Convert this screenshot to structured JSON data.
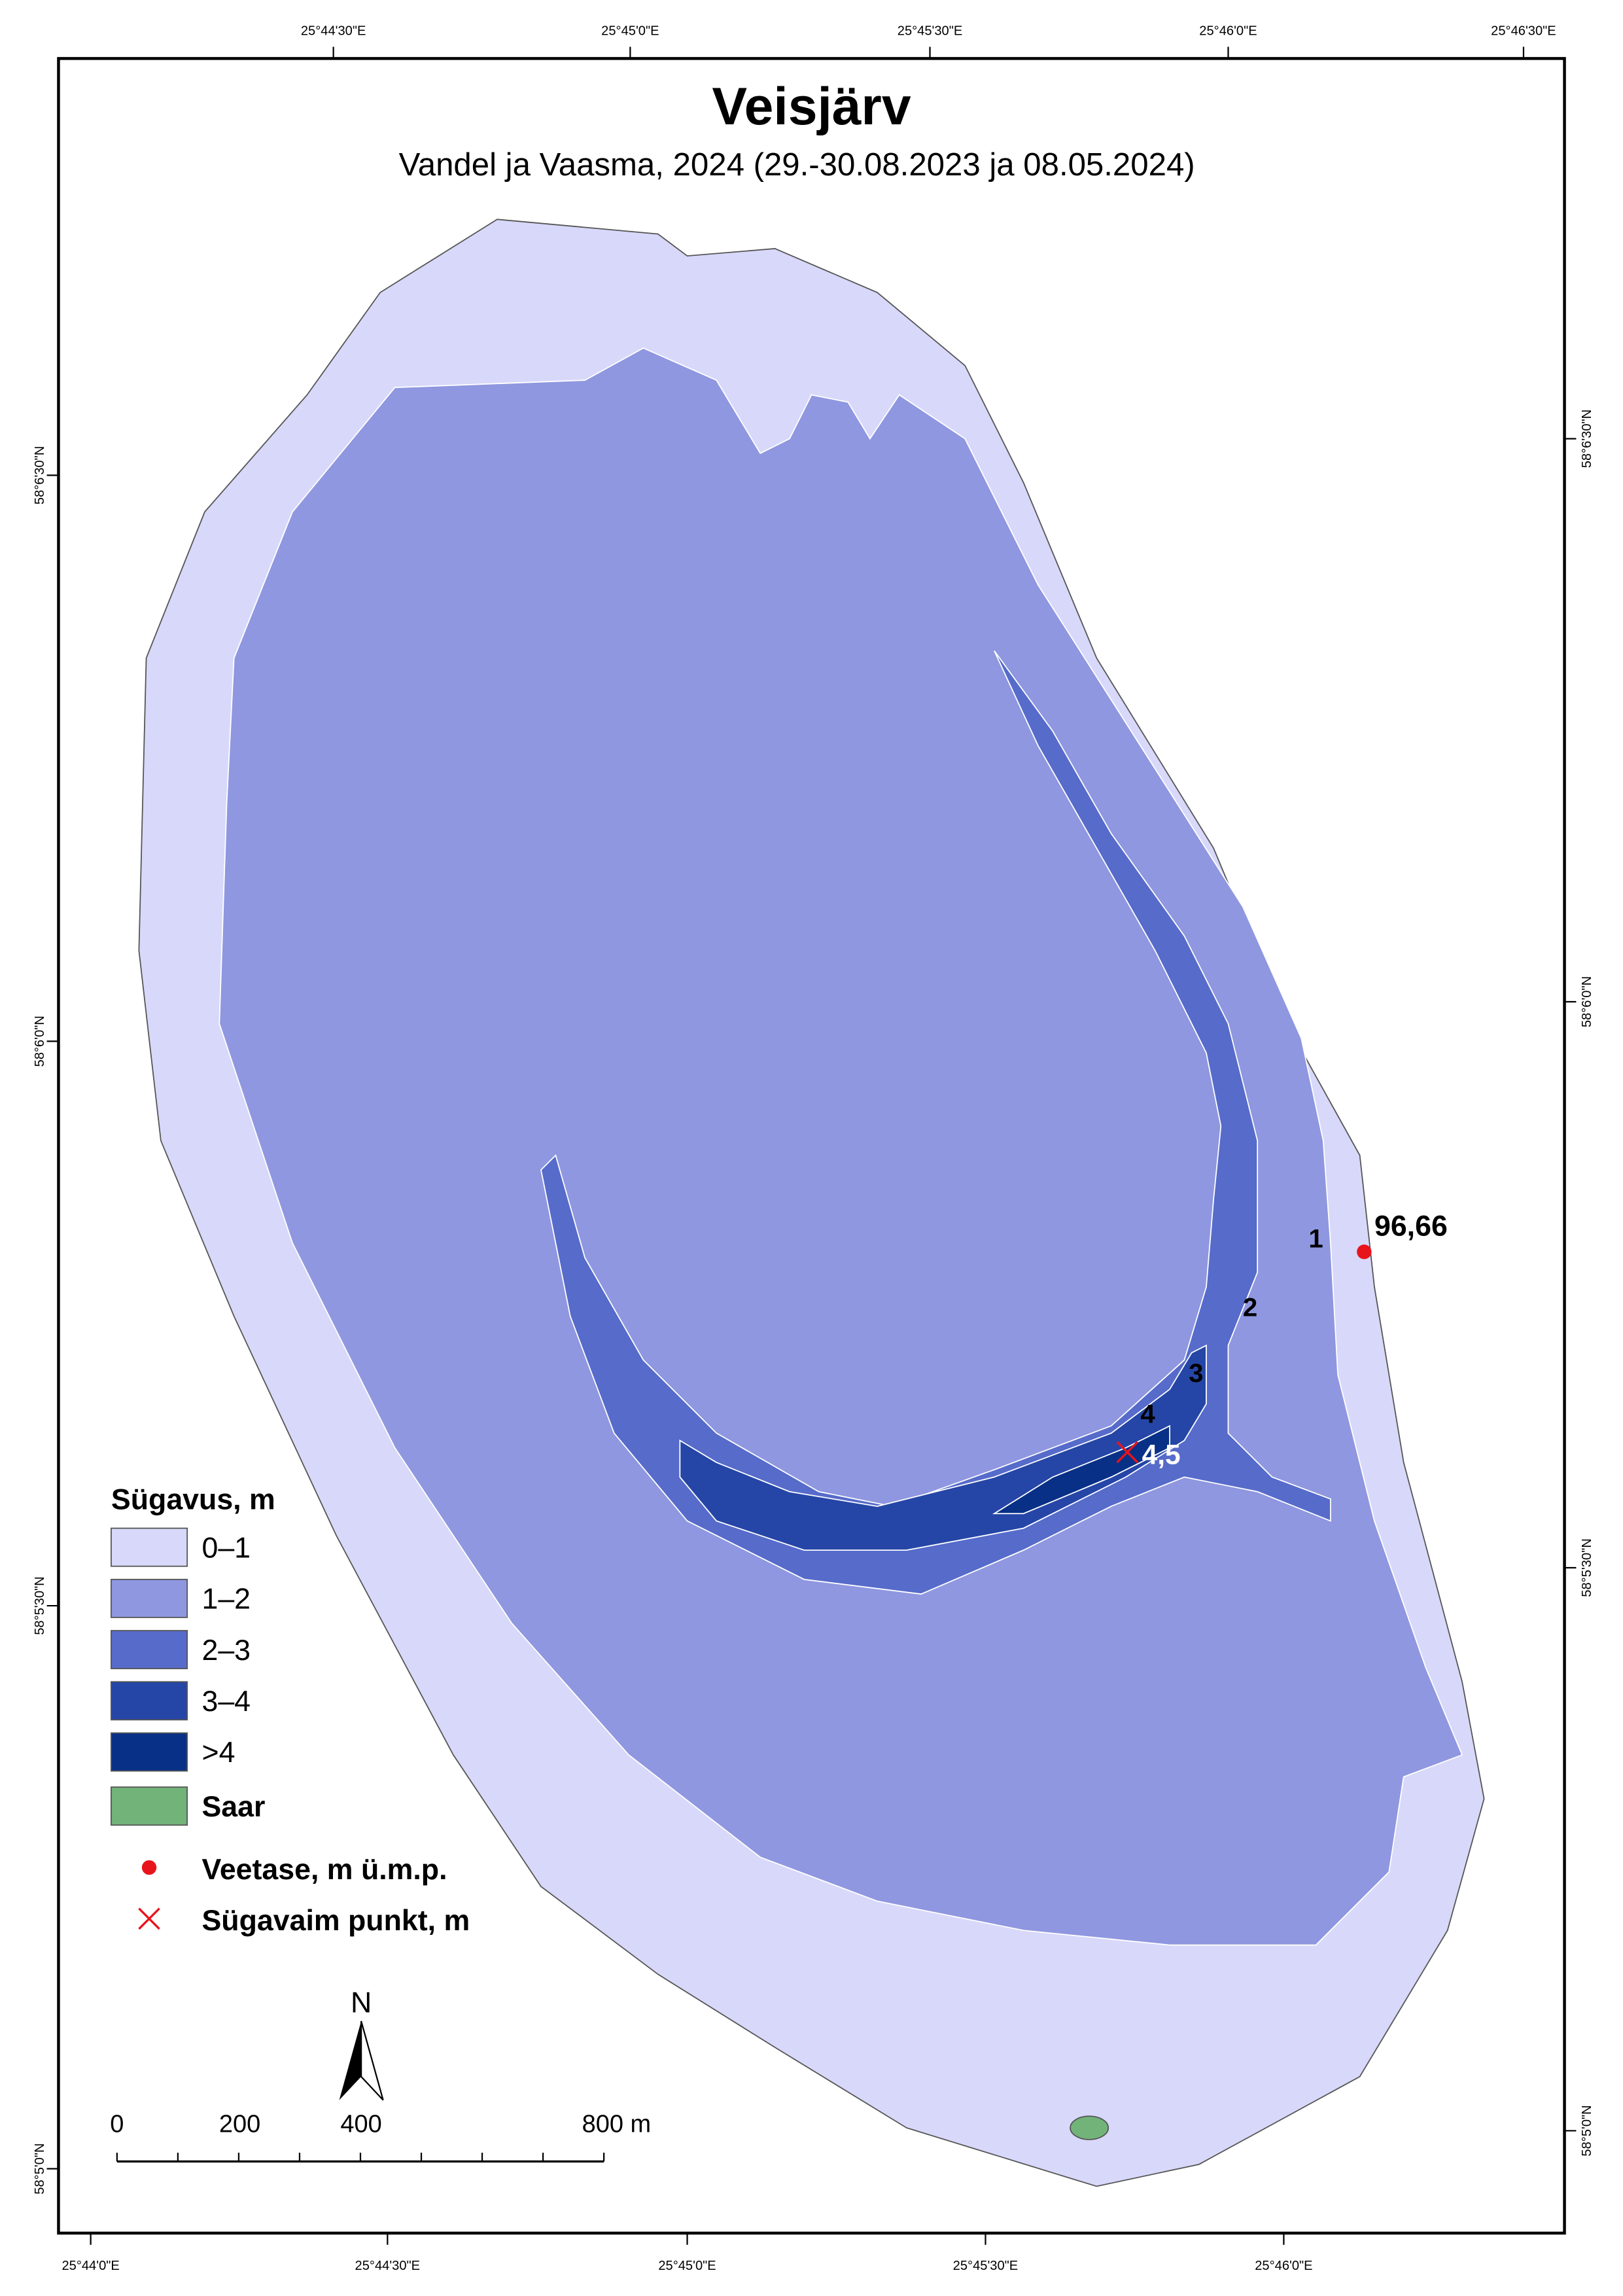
{
  "title": "Veisjärv",
  "subtitle": "Vandel ja Vaasma, 2024 (29.-30.08.2023 ja 08.05.2024)",
  "top_coords": [
    "25°44'30\"E",
    "25°45'0\"E",
    "25°45'30\"E",
    "25°46'0\"E",
    "25°46'30\"E"
  ],
  "bottom_coords": [
    "25°44'0\"E",
    "25°44'30\"E",
    "25°45'0\"E",
    "25°45'30\"E",
    "25°46'0\"E"
  ],
  "left_coords": [
    "58°6'30\"N",
    "58°6'0\"N",
    "58°5'30\"N",
    "58°5'0\"N"
  ],
  "right_coords": [
    "58°6'30\"N",
    "58°6'0\"N",
    "58°5'30\"N",
    "58°5'0\"N"
  ],
  "legend": {
    "title": "Sügavus, m",
    "items": [
      {
        "label": "0–1",
        "color": "#d8d8fa"
      },
      {
        "label": "1–2",
        "color": "#8f97e0"
      },
      {
        "label": "2–3",
        "color": "#566bca"
      },
      {
        "label": "3–4",
        "color": "#2546a6"
      },
      {
        "label": ">4",
        "color": "#083086"
      },
      {
        "label": "Saar",
        "color": "#72b37a"
      }
    ],
    "symbols": [
      {
        "label": "Veetase, m ü.m.p."
      },
      {
        "label": "Sügavaim punkt, m"
      }
    ]
  },
  "map_labels": {
    "contours": [
      "1",
      "2",
      "3",
      "4"
    ],
    "water_level": "96,66",
    "deepest": "4,5"
  },
  "north": "N",
  "scale_bar": [
    "0",
    "200",
    "400",
    "800 m"
  ]
}
